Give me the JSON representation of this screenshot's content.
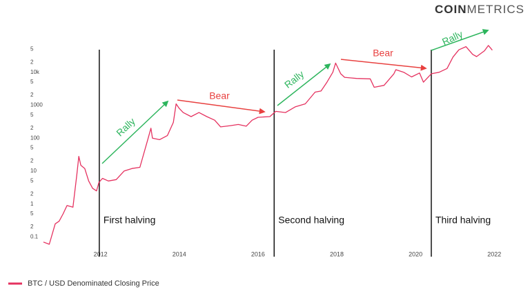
{
  "chart_data": {
    "type": "line",
    "brand": [
      "COIN",
      "METRICS"
    ],
    "log_y": true,
    "grid": false,
    "x": [
      2010.55,
      2010.7,
      2010.85,
      2010.95,
      2011.05,
      2011.15,
      2011.3,
      2011.4,
      2011.45,
      2011.5,
      2011.6,
      2011.7,
      2011.8,
      2011.9,
      2011.96,
      2012.05,
      2012.2,
      2012.4,
      2012.6,
      2012.8,
      2013.0,
      2013.2,
      2013.28,
      2013.32,
      2013.5,
      2013.7,
      2013.85,
      2013.92,
      2014.0,
      2014.1,
      2014.3,
      2014.5,
      2014.7,
      2014.9,
      2015.05,
      2015.3,
      2015.5,
      2015.7,
      2015.85,
      2016.0,
      2016.3,
      2016.45,
      2016.7,
      2016.95,
      2017.2,
      2017.45,
      2017.6,
      2017.75,
      2017.9,
      2017.97,
      2018.1,
      2018.2,
      2018.5,
      2018.85,
      2018.95,
      2019.2,
      2019.45,
      2019.5,
      2019.7,
      2019.9,
      2020.1,
      2020.2,
      2020.4,
      2020.6,
      2020.8,
      2020.95,
      2021.1,
      2021.28,
      2021.45,
      2021.55,
      2021.75,
      2021.85,
      2021.95
    ],
    "series": [
      {
        "name": "BTC / USD Denominated Closing Price",
        "color": "#e5315f",
        "values": [
          0.07,
          0.06,
          0.25,
          0.3,
          0.5,
          0.9,
          0.8,
          8,
          28,
          15,
          12,
          5,
          3,
          2.5,
          4.5,
          6,
          5,
          5.5,
          10,
          12,
          13,
          90,
          200,
          100,
          90,
          120,
          300,
          1100,
          800,
          600,
          450,
          600,
          450,
          350,
          220,
          240,
          260,
          230,
          350,
          430,
          450,
          650,
          600,
          900,
          1100,
          2500,
          2700,
          5000,
          10000,
          19000,
          9000,
          7000,
          6500,
          6300,
          3500,
          4000,
          9000,
          12000,
          10000,
          7200,
          9500,
          5000,
          9000,
          10000,
          13000,
          29000,
          48000,
          60000,
          35000,
          30000,
          45000,
          65000,
          47000
        ]
      }
    ],
    "xlim": [
      2010.5,
      2022.1
    ],
    "xticks": [
      2012,
      2014,
      2016,
      2018,
      2020,
      2022
    ],
    "ylim": [
      0.06,
      100000
    ],
    "yticks": [
      0.1,
      {
        "value": 0.2,
        "label": "2"
      },
      {
        "value": 0.5,
        "label": "5"
      },
      1,
      2,
      5,
      10,
      {
        "value": 20,
        "label": "2"
      },
      {
        "value": 50,
        "label": "5"
      },
      100,
      {
        "value": 200,
        "label": "2"
      },
      {
        "value": 500,
        "label": "5"
      },
      1000,
      {
        "value": 2000,
        "label": "2"
      },
      {
        "value": 5000,
        "label": "5"
      },
      {
        "value": 10000,
        "label": "10k"
      },
      {
        "value": 20000,
        "label": "2"
      },
      {
        "value": 50000,
        "label": "5"
      }
    ],
    "halvings": [
      {
        "x": 2011.97,
        "label": "First halving"
      },
      {
        "x": 2016.41,
        "label": "Second halving"
      },
      {
        "x": 2020.4,
        "label": "Third halving"
      }
    ],
    "annotations": [
      "Rally",
      "Bear",
      "Rally",
      "Bear",
      "Rally"
    ]
  }
}
